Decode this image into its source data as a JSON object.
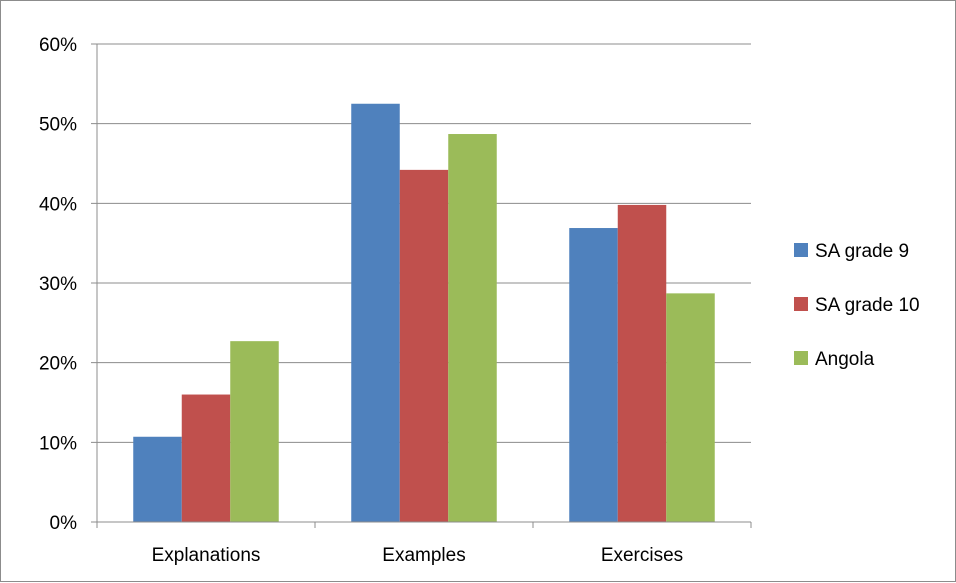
{
  "chart_data": {
    "type": "bar",
    "title": "",
    "xlabel": "",
    "ylabel": "",
    "categories": [
      "Explanations",
      "Examples",
      "Exercises"
    ],
    "series": [
      {
        "name": "SA grade 9",
        "color": "#4f81bd",
        "values": [
          10.7,
          52.5,
          36.9
        ]
      },
      {
        "name": "SA grade 10",
        "color": "#c0504d",
        "values": [
          16.0,
          44.2,
          39.8
        ]
      },
      {
        "name": "Angola",
        "color": "#9bbb59",
        "values": [
          22.7,
          48.7,
          28.7
        ]
      }
    ],
    "ylim": [
      0,
      60
    ],
    "yticks": [
      0,
      10,
      20,
      30,
      40,
      50,
      60
    ],
    "ytick_labels": [
      "0%",
      "10%",
      "20%",
      "30%",
      "40%",
      "50%",
      "60%"
    ],
    "grid": true,
    "legend_position": "right"
  }
}
